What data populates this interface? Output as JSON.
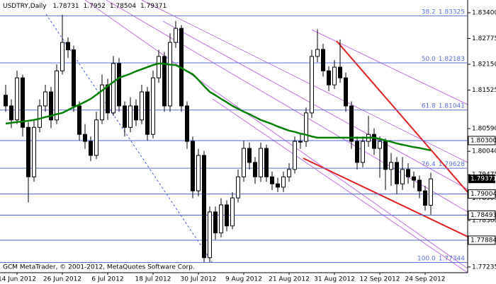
{
  "chart_data": {
    "type": "candlestick",
    "symbol": "USDTRY,Daily",
    "categories": [
      null,
      null,
      "14 Jun 2012",
      null,
      null,
      null,
      null,
      null,
      null,
      null,
      "26 Jun 2012",
      null,
      null,
      null,
      null,
      null,
      null,
      null,
      "6 Jul 2012",
      null,
      null,
      null,
      null,
      null,
      null,
      null,
      "18 Jul 2012",
      null,
      null,
      null,
      null,
      null,
      null,
      null,
      "30 Jul 2012",
      null,
      null,
      null,
      null,
      null,
      null,
      null,
      "9 Aug 2012",
      null,
      null,
      null,
      null,
      null,
      null,
      null,
      "21 Aug 2012",
      null,
      null,
      null,
      null,
      null,
      null,
      null,
      "31 Aug 2012",
      null,
      null,
      null,
      null,
      null,
      null,
      null,
      "12 Sep 2012",
      null,
      null,
      null,
      null,
      null,
      null,
      null,
      "24 Sep 2012",
      null
    ],
    "candles": [
      [
        1.814,
        1.8165,
        1.81,
        1.8114
      ],
      [
        1.8114,
        1.813,
        1.806,
        1.808
      ],
      [
        1.808,
        1.82,
        1.807,
        1.8182
      ],
      [
        1.8182,
        1.819,
        1.804,
        1.8062
      ],
      [
        1.8062,
        1.8075,
        1.788,
        1.7942
      ],
      [
        1.7942,
        1.808,
        1.793,
        1.8062
      ],
      [
        1.8062,
        1.813,
        1.805,
        1.8114
      ],
      [
        1.8114,
        1.8165,
        1.81,
        1.8148
      ],
      [
        1.8148,
        1.816,
        1.806,
        1.808
      ],
      [
        1.808,
        1.8215,
        1.807,
        1.8199
      ],
      [
        1.8199,
        1.8335,
        1.819,
        1.8268
      ],
      [
        1.8268,
        1.828,
        1.823,
        1.825
      ],
      [
        1.825,
        1.826,
        1.81,
        1.8114
      ],
      [
        1.8114,
        1.8125,
        1.803,
        1.8045
      ],
      [
        1.8045,
        1.807,
        1.801,
        1.8028
      ],
      [
        1.8028,
        1.804,
        1.798,
        1.7994
      ],
      [
        1.7994,
        1.81,
        1.7985,
        1.808
      ],
      [
        1.808,
        1.819,
        1.807,
        1.8165
      ],
      [
        1.8165,
        1.818,
        1.808,
        1.8097
      ],
      [
        1.8097,
        1.8235,
        1.809,
        1.8217
      ],
      [
        1.8217,
        1.823,
        1.81,
        1.8114
      ],
      [
        1.8114,
        1.8125,
        1.804,
        1.8062
      ],
      [
        1.8062,
        1.8135,
        1.805,
        1.8114
      ],
      [
        1.8114,
        1.813,
        1.8065,
        1.808
      ],
      [
        1.808,
        1.8165,
        1.807,
        1.8148
      ],
      [
        1.8148,
        1.816,
        1.803,
        1.8045
      ],
      [
        1.8045,
        1.82,
        1.8035,
        1.8182
      ],
      [
        1.8182,
        1.825,
        1.817,
        1.8234
      ],
      [
        1.8234,
        1.8245,
        1.81,
        1.8114
      ],
      [
        1.8114,
        1.829,
        1.81,
        1.8268
      ],
      [
        1.8268,
        1.832,
        1.8255,
        1.8302
      ],
      [
        1.8302,
        1.831,
        1.81,
        1.8114
      ],
      [
        1.8114,
        1.8125,
        1.801,
        1.8028
      ],
      [
        1.8028,
        1.804,
        1.789,
        1.7908
      ],
      [
        1.7908,
        1.801,
        1.7895,
        1.7994
      ],
      [
        1.7994,
        1.8005,
        1.7735,
        1.7746
      ],
      [
        1.7746,
        1.787,
        1.7735,
        1.7857
      ],
      [
        1.7857,
        1.787,
        1.779,
        1.7806
      ],
      [
        1.7806,
        1.789,
        1.7795,
        1.7874
      ],
      [
        1.7874,
        1.7885,
        1.781,
        1.7823
      ],
      [
        1.7823,
        1.7905,
        1.7815,
        1.7891
      ],
      [
        1.7891,
        1.796,
        1.788,
        1.7942
      ],
      [
        1.7942,
        1.803,
        1.793,
        1.8011
      ],
      [
        1.8011,
        1.8025,
        1.796,
        1.7977
      ],
      [
        1.7977,
        1.799,
        1.7925,
        1.7942
      ],
      [
        1.7942,
        1.8025,
        1.793,
        1.8011
      ],
      [
        1.8011,
        1.802,
        1.793,
        1.7942
      ],
      [
        1.7942,
        1.7955,
        1.791,
        1.7925
      ],
      [
        1.7925,
        1.794,
        1.7905,
        1.7917
      ],
      [
        1.7917,
        1.7955,
        1.7905,
        1.7942
      ],
      [
        1.7942,
        1.7975,
        1.793,
        1.796
      ],
      [
        1.796,
        1.804,
        1.795,
        1.8028
      ],
      [
        1.8028,
        1.8045,
        1.801,
        1.8028
      ],
      [
        1.8028,
        1.811,
        1.8015,
        1.8097
      ],
      [
        1.8097,
        1.825,
        1.8085,
        1.8234
      ],
      [
        1.8234,
        1.83,
        1.822,
        1.8251
      ],
      [
        1.8251,
        1.8265,
        1.8185,
        1.8199
      ],
      [
        1.8199,
        1.821,
        1.815,
        1.8165
      ],
      [
        1.8165,
        1.8225,
        1.8155,
        1.8208
      ],
      [
        1.8208,
        1.8275,
        1.817,
        1.8182
      ],
      [
        1.8182,
        1.8195,
        1.81,
        1.8114
      ],
      [
        1.8114,
        1.8125,
        1.801,
        1.8028
      ],
      [
        1.8028,
        1.804,
        1.796,
        1.7977
      ],
      [
        1.7977,
        1.804,
        1.7965,
        1.8028
      ],
      [
        1.8028,
        1.809,
        1.8015,
        1.8045
      ],
      [
        1.8045,
        1.806,
        1.7995,
        1.8011
      ],
      [
        1.8011,
        1.804,
        1.794,
        1.8028
      ],
      [
        1.8028,
        1.8035,
        1.791,
        1.796
      ],
      [
        1.796,
        1.8,
        1.792,
        1.7977
      ],
      [
        1.7977,
        1.799,
        1.79,
        1.7925
      ],
      [
        1.7925,
        1.799,
        1.791,
        1.796
      ],
      [
        1.796,
        1.7975,
        1.7925,
        1.7942
      ],
      [
        1.7942,
        1.7955,
        1.7915,
        1.7934
      ],
      [
        1.7934,
        1.7945,
        1.789,
        1.7908
      ],
      [
        1.7908,
        1.792,
        1.786,
        1.7873
      ],
      [
        1.78731,
        1.7952,
        1.78504,
        1.79371
      ]
    ],
    "up_color": "#ffffff",
    "down_color": "#000000",
    "moving_average": {
      "color": "#008000",
      "values": [
        1.8071,
        1.8073,
        1.8075,
        1.8076,
        1.8078,
        1.808,
        1.8083,
        1.8087,
        1.809,
        1.8094,
        1.8097,
        1.8104,
        1.8111,
        1.8117,
        1.8124,
        1.8131,
        1.8141,
        1.8151,
        1.8162,
        1.8172,
        1.8182,
        1.8187,
        1.8192,
        1.8198,
        1.8203,
        1.8208,
        1.8213,
        1.8217,
        1.8216,
        1.8214,
        1.8213,
        1.8206,
        1.8198,
        1.8191,
        1.8177,
        1.8162,
        1.8148,
        1.814,
        1.8131,
        1.8123,
        1.8114,
        1.8107,
        1.81,
        1.8094,
        1.8087,
        1.808,
        1.8075,
        1.807,
        1.8064,
        1.8059,
        1.8054,
        1.8051,
        1.8047,
        1.8044,
        1.804,
        1.8037,
        1.8037,
        1.8037,
        1.8037,
        1.8037,
        1.8037,
        1.8037,
        1.8037,
        1.8037,
        1.8037,
        1.8037,
        1.8034,
        1.803,
        1.8027,
        1.8023,
        1.802,
        1.8017,
        1.8014,
        1.8012,
        1.8009,
        1.8006
      ]
    },
    "ylim": [
      1.77096,
      1.83708
    ],
    "yticks": [
      {
        "value": 1.834,
        "label": "1.83400"
      },
      1.82775,
      {
        "value": 1.8215,
        "label": "1.82150"
      },
      1.81525,
      {
        "value": 1.8059,
        "label": "1.80590"
      },
      {
        "value": 1.8004,
        "label": "1.80040"
      },
      1.79475,
      1.78905,
      {
        "value": 1.7836,
        "label": "1.78360"
      },
      1.77235
    ],
    "levels": [
      {
        "value": 1.803,
        "label": "1.80300"
      },
      1.79004,
      1.78493,
      1.77884
    ],
    "fibonacci": [
      {
        "ratio": "38.2",
        "value": 1.83325
      },
      {
        "ratio": "50.0",
        "value": 1.82183
      },
      {
        "ratio": "61.8",
        "value": 1.81041
      },
      {
        "ratio": "76.4",
        "value": 1.79628
      },
      {
        "ratio": "100.0",
        "value": 1.77344
      }
    ],
    "footer": "GCM MetaTrader, © 2001-2012, MetaQuotes Software Corp."
  }
}
